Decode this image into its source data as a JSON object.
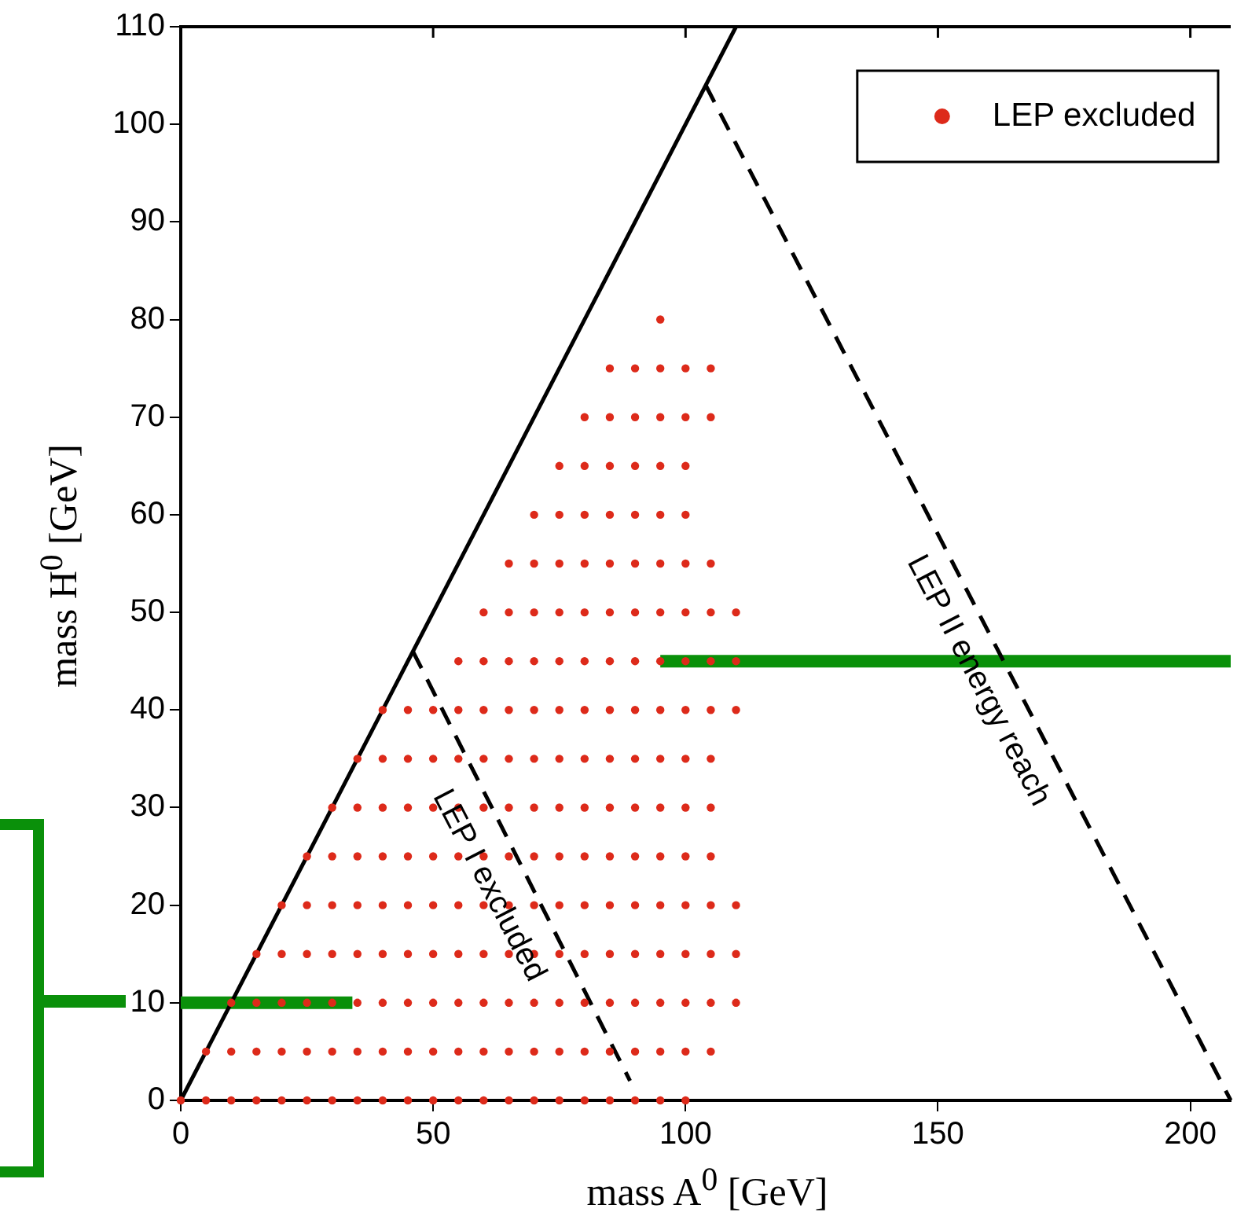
{
  "chart_data": {
    "type": "scatter",
    "xlabel": "mass A$^{0}$ [GeV]",
    "ylabel": "mass H$^{0}$ [GeV]",
    "xlim": [
      0,
      208
    ],
    "xticks": [
      0,
      50,
      100,
      150,
      200
    ],
    "ylim": [
      0,
      110
    ],
    "yticks": [
      0,
      10,
      20,
      30,
      40,
      50,
      60,
      70,
      80,
      90,
      100,
      110
    ],
    "legend": "top right",
    "grid": false,
    "annotations": [
      "LEP I excluded",
      "LEP II energy reach"
    ],
    "series": [
      {
        "name": "LEP excluded",
        "marker": "circle",
        "color": "#dd2a1a",
        "x": [
          0,
          5,
          10,
          15,
          20,
          25,
          30,
          35,
          40,
          45,
          50,
          55,
          60,
          65,
          70,
          75,
          80,
          85,
          90,
          95,
          100,
          5,
          10,
          15,
          20,
          25,
          30,
          35,
          40,
          45,
          50,
          55,
          60,
          65,
          70,
          75,
          80,
          85,
          90,
          95,
          100,
          105,
          10,
          15,
          20,
          25,
          30,
          35,
          40,
          45,
          50,
          55,
          60,
          65,
          70,
          75,
          80,
          85,
          90,
          95,
          100,
          105,
          110,
          15,
          20,
          25,
          30,
          35,
          40,
          45,
          50,
          55,
          60,
          65,
          70,
          75,
          80,
          85,
          90,
          95,
          100,
          105,
          110,
          20,
          25,
          30,
          35,
          40,
          45,
          50,
          55,
          60,
          65,
          70,
          75,
          80,
          85,
          90,
          95,
          100,
          105,
          110,
          25,
          30,
          35,
          40,
          45,
          50,
          55,
          60,
          65,
          70,
          75,
          80,
          85,
          90,
          95,
          100,
          105,
          30,
          35,
          40,
          45,
          50,
          55,
          60,
          65,
          70,
          75,
          80,
          85,
          90,
          95,
          100,
          105,
          35,
          40,
          45,
          50,
          55,
          60,
          65,
          70,
          75,
          80,
          85,
          90,
          95,
          100,
          105,
          40,
          45,
          50,
          55,
          60,
          65,
          70,
          75,
          80,
          85,
          90,
          95,
          100,
          105,
          110,
          55,
          60,
          65,
          70,
          75,
          80,
          85,
          90,
          95,
          100,
          105,
          110,
          60,
          65,
          70,
          75,
          80,
          85,
          90,
          95,
          100,
          105,
          110,
          65,
          70,
          75,
          80,
          85,
          90,
          95,
          100,
          105,
          70,
          75,
          80,
          85,
          90,
          95,
          100,
          75,
          80,
          85,
          90,
          95,
          100,
          80,
          85,
          90,
          95,
          100,
          105,
          85,
          90,
          95,
          100,
          105,
          95
        ],
        "values": [
          0,
          0,
          0,
          0,
          0,
          0,
          0,
          0,
          0,
          0,
          0,
          0,
          0,
          0,
          0,
          0,
          0,
          0,
          0,
          0,
          0,
          5,
          5,
          5,
          5,
          5,
          5,
          5,
          5,
          5,
          5,
          5,
          5,
          5,
          5,
          5,
          5,
          5,
          5,
          5,
          5,
          5,
          10,
          10,
          10,
          10,
          10,
          10,
          10,
          10,
          10,
          10,
          10,
          10,
          10,
          10,
          10,
          10,
          10,
          10,
          10,
          10,
          10,
          15,
          15,
          15,
          15,
          15,
          15,
          15,
          15,
          15,
          15,
          15,
          15,
          15,
          15,
          15,
          15,
          15,
          15,
          15,
          15,
          20,
          20,
          20,
          20,
          20,
          20,
          20,
          20,
          20,
          20,
          20,
          20,
          20,
          20,
          20,
          20,
          20,
          20,
          20,
          25,
          25,
          25,
          25,
          25,
          25,
          25,
          25,
          25,
          25,
          25,
          25,
          25,
          25,
          25,
          25,
          25,
          30,
          30,
          30,
          30,
          30,
          30,
          30,
          30,
          30,
          30,
          30,
          30,
          30,
          30,
          30,
          30,
          35,
          35,
          35,
          35,
          35,
          35,
          35,
          35,
          35,
          35,
          35,
          35,
          35,
          35,
          35,
          40,
          40,
          40,
          40,
          40,
          40,
          40,
          40,
          40,
          40,
          40,
          40,
          40,
          40,
          40,
          45,
          45,
          45,
          45,
          45,
          45,
          45,
          45,
          45,
          45,
          45,
          45,
          50,
          50,
          50,
          50,
          50,
          50,
          50,
          50,
          50,
          50,
          50,
          55,
          55,
          55,
          55,
          55,
          55,
          55,
          55,
          55,
          60,
          60,
          60,
          60,
          60,
          60,
          60,
          65,
          65,
          65,
          65,
          65,
          65,
          70,
          70,
          70,
          70,
          70,
          70,
          75,
          75,
          75,
          75,
          75,
          80
        ]
      },
      {
        "type": "line",
        "marker": "none",
        "line_style": "solid",
        "color": "#000000",
        "x": [
          0,
          110
        ],
        "values": [
          0,
          110
        ]
      },
      {
        "type": "line",
        "marker": "none",
        "line_style": "dashed",
        "color": "#000000",
        "x": [
          46,
          89
        ],
        "values": [
          46,
          2
        ]
      },
      {
        "type": "line",
        "marker": "none",
        "line_style": "dashed",
        "color": "#000000",
        "x": [
          104,
          208
        ],
        "values": [
          104,
          0
        ]
      },
      {
        "type": "line",
        "marker": "none",
        "line_style": "solid",
        "color": "#0a900a",
        "x": [
          95,
          208
        ],
        "values": [
          45,
          45
        ]
      },
      {
        "type": "line",
        "marker": "none",
        "line_style": "solid",
        "color": "#0a900a",
        "x": [
          0,
          34
        ],
        "values": [
          10,
          10
        ]
      }
    ]
  }
}
